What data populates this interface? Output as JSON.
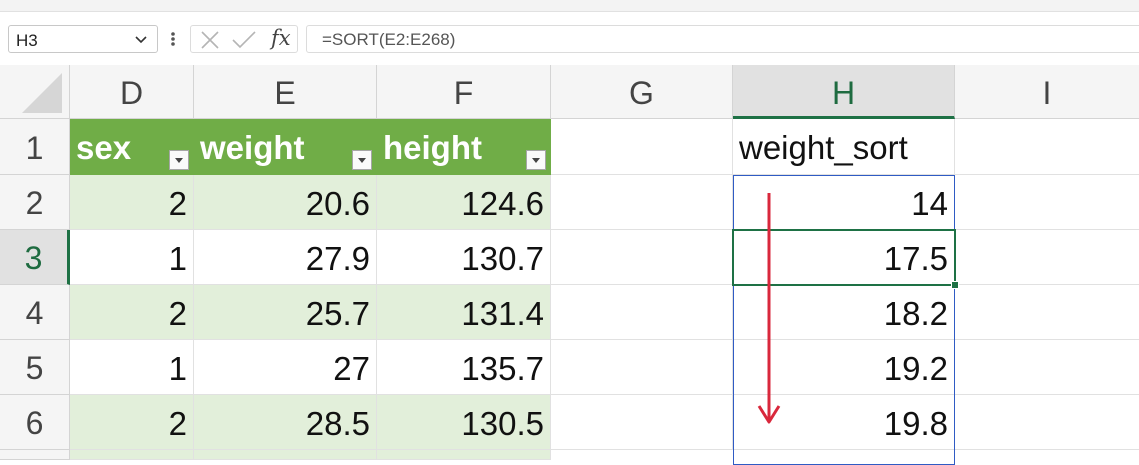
{
  "formula_bar": {
    "name_box": "H3",
    "formula": "=SORT(E2:E268)",
    "fx_label": "fx"
  },
  "columns": [
    "D",
    "E",
    "F",
    "G",
    "H",
    "I"
  ],
  "selected_column": "H",
  "rows": [
    "1",
    "2",
    "3",
    "4",
    "5",
    "6"
  ],
  "selected_row": "3",
  "table": {
    "headers": [
      "sex",
      "weight",
      "height"
    ],
    "rows": [
      [
        "2",
        "20.6",
        "124.6"
      ],
      [
        "1",
        "27.9",
        "130.7"
      ],
      [
        "2",
        "25.7",
        "131.4"
      ],
      [
        "1",
        "27",
        "135.7"
      ],
      [
        "2",
        "28.5",
        "130.5"
      ]
    ]
  },
  "sorted": {
    "header": "weight_sort",
    "values": [
      "14",
      "17.5",
      "18.2",
      "19.2",
      "19.8"
    ]
  },
  "colors": {
    "table_header": "#70ad47",
    "table_band": "#e2efda",
    "selection": "#1e7145",
    "spill_border": "#2f5bc4",
    "arrow": "#d9283c"
  },
  "annotation": {
    "arrow_direction": "down"
  }
}
